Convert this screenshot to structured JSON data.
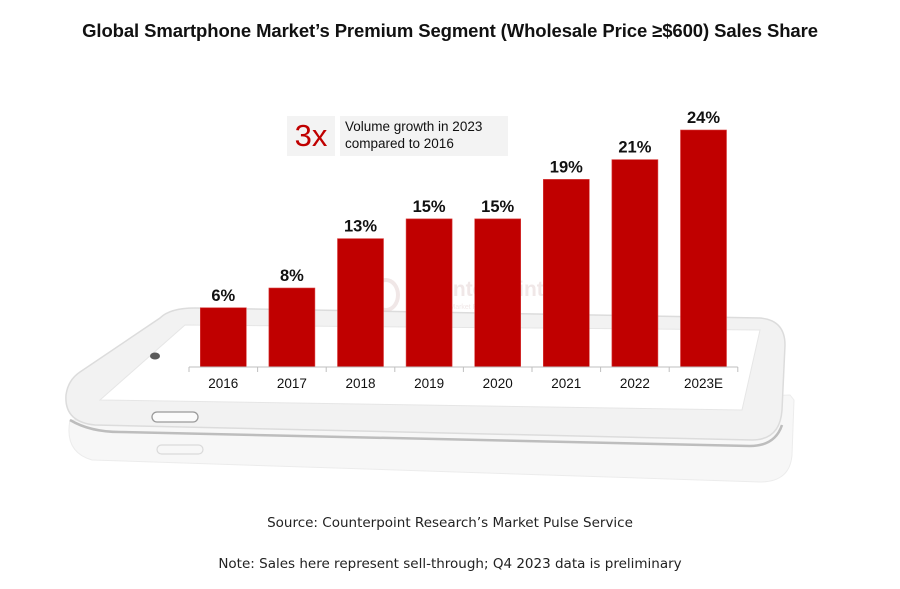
{
  "header": {
    "title": "Global Smartphone Market’s Premium Segment (Wholesale Price ≥$600) Sales Share"
  },
  "callout": {
    "multiplier": "3x",
    "description_line1": "Volume growth in 2023",
    "description_line2": "compared to 2016"
  },
  "watermark": {
    "name": "Counterpoint",
    "tagline": "Technology Market Research"
  },
  "footer": {
    "source": "Source: Counterpoint Research’s Market Pulse Service",
    "note": "Note: Sales here represent sell-through; Q4 2023 data is preliminary"
  },
  "colors": {
    "bar": "#c00000",
    "accent": "#c00000",
    "text": "#111111"
  },
  "chart_data": {
    "type": "bar",
    "title": "Global Smartphone Market’s Premium Segment (Wholesale Price ≥$600) Sales Share",
    "xlabel": "",
    "ylabel": "",
    "categories": [
      "2016",
      "2017",
      "2018",
      "2019",
      "2020",
      "2021",
      "2022",
      "2023E"
    ],
    "values": [
      6,
      8,
      13,
      15,
      15,
      19,
      21,
      24
    ],
    "data_labels": [
      "6%",
      "8%",
      "13%",
      "15%",
      "15%",
      "19%",
      "21%",
      "24%"
    ],
    "unit": "%",
    "ylim": [
      0,
      24
    ],
    "grid": false,
    "legend": "none",
    "annotations": [
      "3x Volume growth in 2023 compared to 2016"
    ]
  }
}
